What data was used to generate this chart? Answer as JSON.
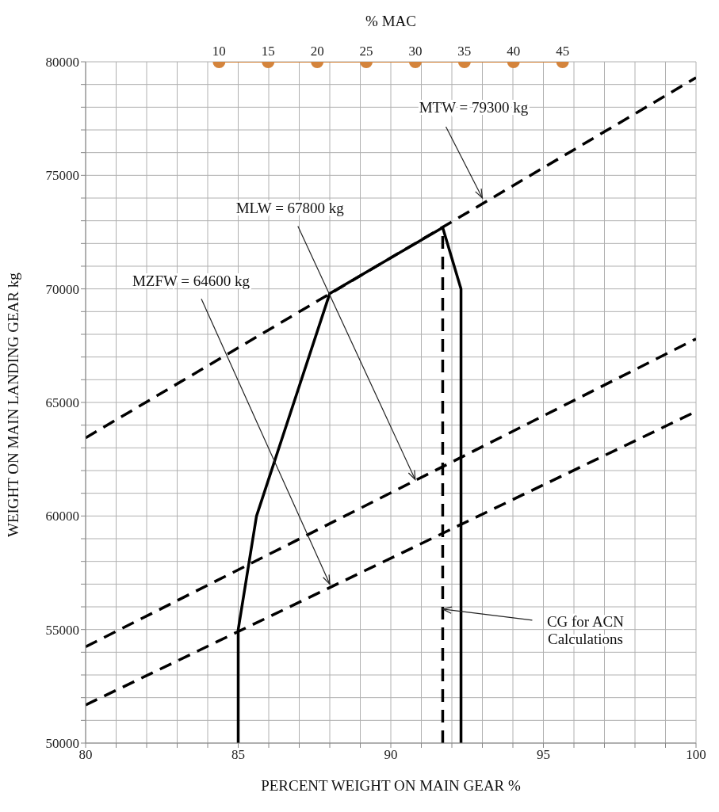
{
  "chart_data": {
    "type": "line",
    "xlabel": "PERCENT WEIGHT ON MAIN GEAR %",
    "ylabel": "WEIGHT ON MAIN LANDING GEAR kg",
    "x2label": "% MAC",
    "xlim": [
      80,
      100
    ],
    "ylim": [
      50000,
      80000
    ],
    "x2lim": [
      -3.6,
      58.6
    ],
    "xticks": [
      80,
      {
        "value": 81,
        "label": null
      },
      {
        "value": 82,
        "label": null
      },
      {
        "value": 83,
        "label": null
      },
      {
        "value": 84,
        "label": null
      },
      85,
      {
        "value": 86,
        "label": null
      },
      {
        "value": 87,
        "label": null
      },
      {
        "value": 88,
        "label": null
      },
      {
        "value": 89,
        "label": null
      },
      90,
      {
        "value": 91,
        "label": null
      },
      {
        "value": 92,
        "label": null
      },
      {
        "value": 93,
        "label": null
      },
      {
        "value": 94,
        "label": null
      },
      95,
      {
        "value": 96,
        "label": null
      },
      {
        "value": 97,
        "label": null
      },
      {
        "value": 98,
        "label": null
      },
      {
        "value": 99,
        "label": null
      },
      100
    ],
    "yticks": [
      50000,
      {
        "value": 51000,
        "label": null
      },
      {
        "value": 52000,
        "label": null
      },
      {
        "value": 53000,
        "label": null
      },
      {
        "value": 54000,
        "label": null
      },
      55000,
      {
        "value": 56000,
        "label": null
      },
      {
        "value": 57000,
        "label": null
      },
      {
        "value": 58000,
        "label": null
      },
      {
        "value": 59000,
        "label": null
      },
      60000,
      {
        "value": 61000,
        "label": null
      },
      {
        "value": 62000,
        "label": null
      },
      {
        "value": 63000,
        "label": null
      },
      {
        "value": 64000,
        "label": null
      },
      65000,
      {
        "value": 66000,
        "label": null
      },
      {
        "value": 67000,
        "label": null
      },
      {
        "value": 68000,
        "label": null
      },
      {
        "value": 69000,
        "label": null
      },
      70000,
      {
        "value": 71000,
        "label": null
      },
      {
        "value": 72000,
        "label": null
      },
      {
        "value": 73000,
        "label": null
      },
      {
        "value": 74000,
        "label": null
      },
      75000,
      {
        "value": 76000,
        "label": null
      },
      {
        "value": 77000,
        "label": null
      },
      {
        "value": 78000,
        "label": null
      },
      {
        "value": 79000,
        "label": null
      },
      80000
    ],
    "x2ticks": [
      10,
      15,
      20,
      25,
      30,
      35,
      40,
      45
    ],
    "grid": true,
    "series": [
      {
        "color": "#000000",
        "line_style": "dashed",
        "x": [
          80,
          100
        ],
        "values": [
          63440,
          79300
        ]
      },
      {
        "color": "#000000",
        "line_style": "dashed",
        "x": [
          80,
          100
        ],
        "values": [
          54240,
          67800
        ]
      },
      {
        "color": "#000000",
        "line_style": "dashed",
        "x": [
          80,
          100
        ],
        "values": [
          51680,
          64600
        ]
      },
      {
        "color": "#000000",
        "line_style": "solid",
        "x": [
          85,
          85,
          85.6,
          88,
          91.7,
          92.3,
          92.3
        ],
        "values": [
          50000,
          55000,
          60000,
          69800,
          72700,
          70000,
          50000
        ]
      },
      {
        "color": "#000000",
        "line_style": "dashed",
        "x": [
          91.7,
          91.7
        ],
        "values": [
          50000,
          72700
        ]
      },
      {
        "color": "#d4843c",
        "line_style": "solid",
        "marker": "circle",
        "axis": "x2",
        "x": [
          10,
          15,
          20,
          25,
          30,
          35,
          40,
          45
        ],
        "values": [
          80000,
          80000,
          80000,
          80000,
          80000,
          80000,
          80000,
          80000
        ]
      }
    ],
    "annotations": [
      {
        "text": "MTW = 79300 kg",
        "x": 93,
        "y": 74000
      },
      {
        "text": "MLW = 67800 kg",
        "x": 90.8,
        "y": 61600
      },
      {
        "text": "MZFW = 64600 kg",
        "x": 88,
        "y": 57000
      },
      {
        "text": "CG for ACN Calculations",
        "x": 91.7,
        "y": 55900
      }
    ]
  }
}
